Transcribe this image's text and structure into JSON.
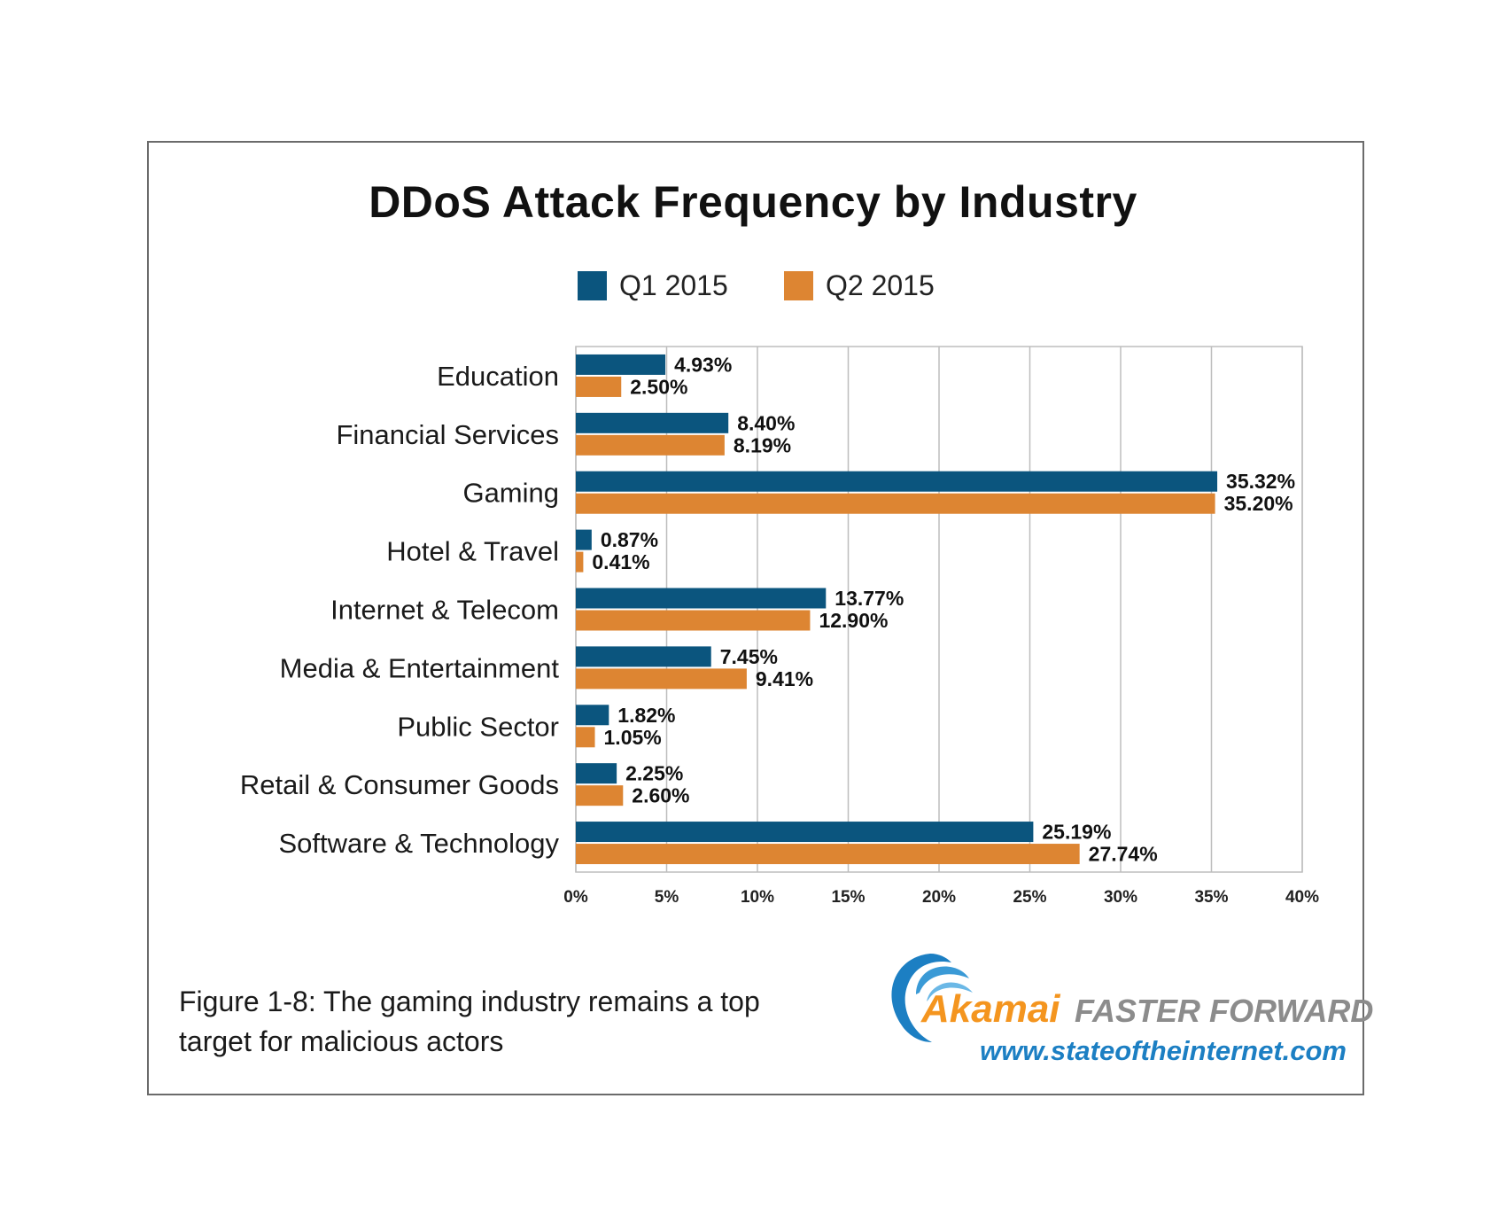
{
  "title": "DDoS Attack Frequency by Industry",
  "legend": {
    "series": [
      {
        "name": "Q1 2015",
        "color": "#0b557e"
      },
      {
        "name": "Q2 2015",
        "color": "#dd8532"
      }
    ]
  },
  "chart_data": {
    "type": "bar",
    "orientation": "horizontal",
    "title": "DDoS Attack Frequency by Industry",
    "categories": [
      "Education",
      "Financial Services",
      "Gaming",
      "Hotel & Travel",
      "Internet & Telecom",
      "Media & Entertainment",
      "Public Sector",
      "Retail & Consumer Goods",
      "Software & Technology"
    ],
    "series": [
      {
        "name": "Q1 2015",
        "color": "#0b557e",
        "values": [
          4.93,
          8.4,
          35.32,
          0.87,
          13.77,
          7.45,
          1.82,
          2.25,
          25.19
        ],
        "labels": [
          "4.93%",
          "8.40%",
          "35.32%",
          "0.87%",
          "13.77%",
          "7.45%",
          "1.82%",
          "2.25%",
          "25.19%"
        ]
      },
      {
        "name": "Q2 2015",
        "color": "#dd8532",
        "values": [
          2.5,
          8.19,
          35.2,
          0.41,
          12.9,
          9.41,
          1.05,
          2.6,
          27.74
        ],
        "labels": [
          "2.50%",
          "8.19%",
          "35.20%",
          "0.41%",
          "12.90%",
          "9.41%",
          "1.05%",
          "2.60%",
          "27.74%"
        ]
      }
    ],
    "xlim": [
      0,
      40
    ],
    "xticks": [
      0,
      5,
      10,
      15,
      20,
      25,
      30,
      35,
      40
    ],
    "xtick_labels": [
      "0%",
      "5%",
      "10%",
      "15%",
      "20%",
      "25%",
      "30%",
      "35%",
      "40%"
    ],
    "xlabel": "",
    "ylabel": "",
    "grid": true,
    "legend_position": "top"
  },
  "caption": "Figure 1-8: The gaming industry remains a top target for malicious actors",
  "branding": {
    "name": "Akamai",
    "tagline": "FASTER FORWARD",
    "url": "www.stateoftheinternet.com"
  }
}
